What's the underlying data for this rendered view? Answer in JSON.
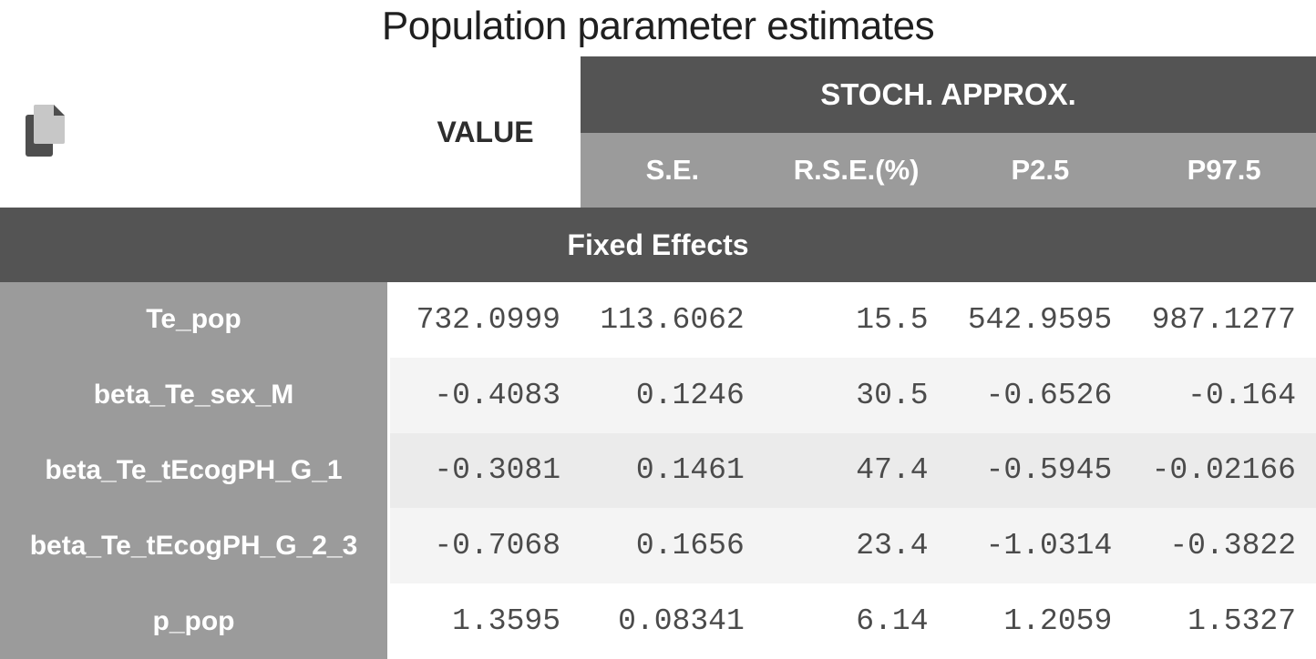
{
  "title": "Population parameter estimates",
  "table": {
    "value_header": "VALUE",
    "group_header": "STOCH. APPROX.",
    "subheaders": [
      "S.E.",
      "R.S.E.(%)",
      "P2.5",
      "P97.5"
    ],
    "section_header": "Fixed Effects",
    "rows": [
      {
        "label": "Te_pop",
        "value": "732.0999",
        "se": "113.6062",
        "rse": "15.5",
        "p25": "542.9595",
        "p975": "987.1277"
      },
      {
        "label": "beta_Te_sex_M",
        "value": "-0.4083",
        "se": "0.1246",
        "rse": "30.5",
        "p25": "-0.6526",
        "p975": "-0.164"
      },
      {
        "label": "beta_Te_tEcogPH_G_1",
        "value": "-0.3081",
        "se": "0.1461",
        "rse": "47.4",
        "p25": "-0.5945",
        "p975": "-0.02166"
      },
      {
        "label": "beta_Te_tEcogPH_G_2_3",
        "value": "-0.7068",
        "se": "0.1656",
        "rse": "23.4",
        "p25": "-1.0314",
        "p975": "-0.3822"
      },
      {
        "label": "p_pop",
        "value": "1.3595",
        "se": "0.08341",
        "rse": "6.14",
        "p25": "1.2059",
        "p975": "1.5327"
      }
    ]
  },
  "icons": {
    "copy": "copy-icon"
  },
  "colors": {
    "dark_band": "#545454",
    "gray_band": "#9b9b9b",
    "stripe_light": "#f4f4f4",
    "stripe_mid": "#ebebeb",
    "number_text": "#4b4b4b",
    "header_text": "#ffffff",
    "title_text": "#1f1f1f"
  }
}
